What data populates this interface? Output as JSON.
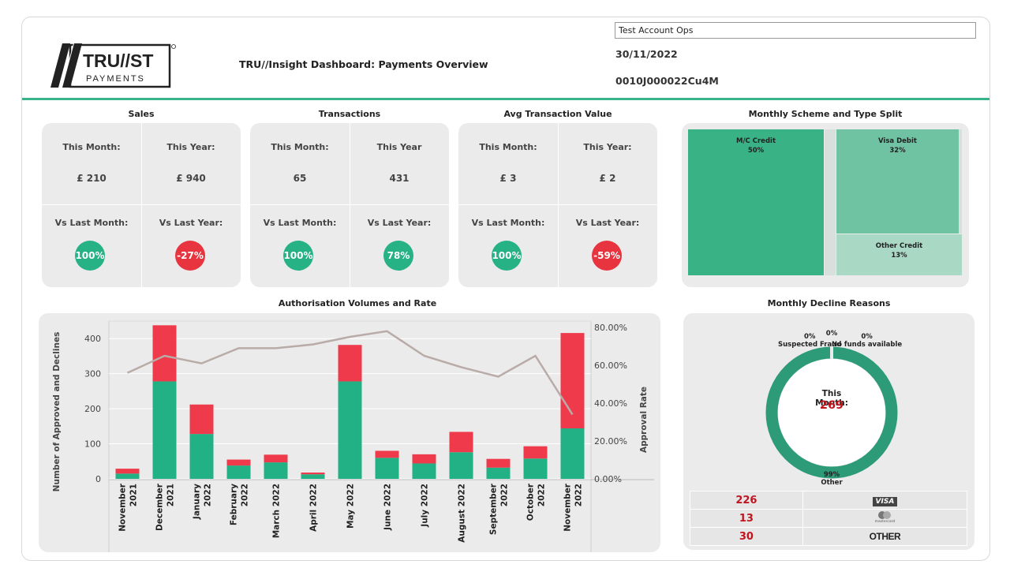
{
  "header": {
    "title": "TRU//Insight Dashboard: Payments Overview",
    "account_filter": "Test Account Ops",
    "date": "30/11/2022",
    "account_id": "0010J000022Cu4M",
    "logo_top": "TRU//ST",
    "logo_bottom": "PAYMENTS"
  },
  "colors": {
    "green": "#27b286",
    "red": "#e8343f",
    "red_bar": "#ee3a4a",
    "green_bar": "#22b184",
    "line": "#b9aba7"
  },
  "kpis": [
    {
      "title": "Sales",
      "this_month_label": "This Month:",
      "this_month": "£ 210",
      "this_year_label": "This Year:",
      "this_year": "£ 940",
      "vs_month_label": "Vs Last Month:",
      "vs_month": "100%",
      "vs_month_status": "positive",
      "vs_year_label": "Vs Last Year:",
      "vs_year": "-27%",
      "vs_year_status": "negative"
    },
    {
      "title": "Transactions",
      "this_month_label": "This Month:",
      "this_month": "65",
      "this_year_label": "This Year",
      "this_year": "431",
      "vs_month_label": "Vs Last Month:",
      "vs_month": "100%",
      "vs_month_status": "positive",
      "vs_year_label": "Vs Last Year:",
      "vs_year": "78%",
      "vs_year_status": "positive"
    },
    {
      "title": "Avg Transaction Value",
      "this_month_label": "This Month:",
      "this_month": "£ 3",
      "this_year_label": "This Year:",
      "this_year": "£ 2",
      "vs_month_label": "Vs Last Month:",
      "vs_month": "100%",
      "vs_month_status": "positive",
      "vs_year_label": "Vs Last Year:",
      "vs_year": "-59%",
      "vs_year_status": "negative"
    }
  ],
  "scheme": {
    "title": "Monthly Scheme and Type Split",
    "segments": [
      {
        "name": "M/C Credit",
        "pct": "50%",
        "color": "#39b385"
      },
      {
        "name": "Visa Debit",
        "pct": "32%",
        "color": "#6fc3a3"
      },
      {
        "name": "Other Credit",
        "pct": "13%",
        "color": "#a9d9c4"
      }
    ]
  },
  "auth": {
    "title": "Authorisation Volumes and Rate",
    "ylabel_left": "Number of Approved and Declines",
    "ylabel_right": "Approval Rate"
  },
  "chart_data": {
    "type": "bar",
    "stacked": true,
    "categories": [
      [
        "November",
        "2021"
      ],
      [
        "December",
        "2021"
      ],
      [
        "January",
        "2022"
      ],
      [
        "February",
        "2022"
      ],
      [
        "March 2022"
      ],
      [
        "April 2022"
      ],
      [
        "May 2022"
      ],
      [
        "June 2022"
      ],
      [
        "July 2022"
      ],
      [
        "August 2022"
      ],
      [
        "September",
        "2022"
      ],
      [
        "October",
        "2022"
      ],
      [
        "November",
        "2022"
      ]
    ],
    "series": [
      {
        "values": [
          15,
          278,
          128,
          38,
          47,
          13,
          278,
          60,
          44,
          76,
          32,
          58,
          144
        ]
      },
      {
        "values": [
          14,
          160,
          84,
          17,
          22,
          5,
          104,
          20,
          26,
          58,
          25,
          35,
          272
        ]
      }
    ],
    "line": [
      56,
      65,
      61,
      69,
      69,
      71,
      75,
      78,
      65,
      59,
      54,
      65,
      34
    ],
    "ylim": [
      0,
      450
    ],
    "yticks": [
      "0",
      "100",
      "200",
      "300",
      "400"
    ],
    "y2lim": [
      0,
      80
    ],
    "y2ticks": [
      "0.00%",
      "20.00%",
      "40.00%",
      "60.00%",
      "80.00%"
    ]
  },
  "decline": {
    "title": "Monthly Decline Reasons",
    "center_label": "This Month:",
    "center_value": "269",
    "labels": [
      {
        "pct": "0%",
        "name": "Suspected Fraud"
      },
      {
        "pct": "0%",
        "name": "No funds available"
      },
      {
        "pct": "99%",
        "name": "Other"
      }
    ],
    "rows": [
      {
        "value": "226",
        "brand": "VISA"
      },
      {
        "value": "13",
        "brand": "mastercard"
      },
      {
        "value": "30",
        "brand": "OTHER"
      }
    ]
  }
}
